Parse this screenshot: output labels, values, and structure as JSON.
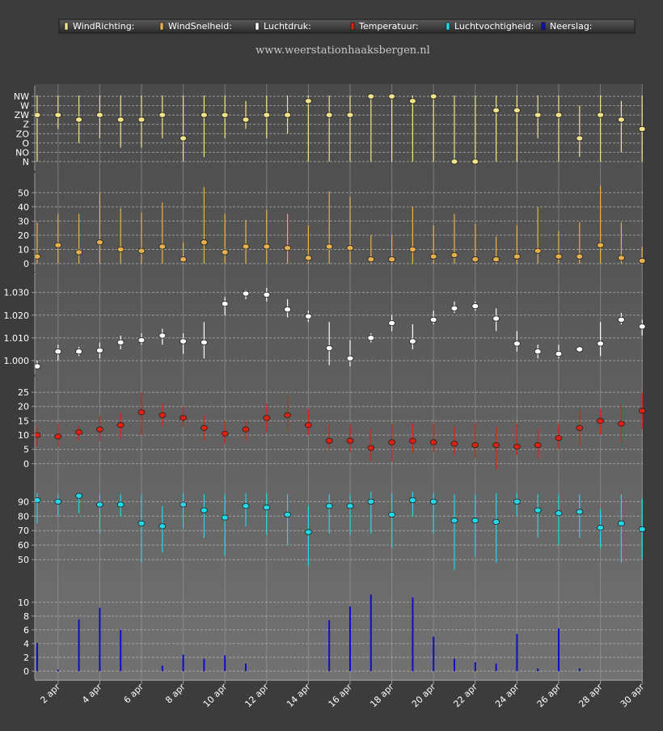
{
  "site": "www.weerstationhaaksbergen.nl",
  "legend": [
    {
      "label": "WindRichting:",
      "color": "#f2e28a"
    },
    {
      "label": "WindSnelheid:",
      "color": "#e8b04c"
    },
    {
      "label": "Luchtdruk:",
      "color": "#ffffff"
    },
    {
      "label": "Temperatuur:",
      "color": "#e02010"
    },
    {
      "label": "Luchtvochtigheid:",
      "color": "#20d8e8"
    },
    {
      "label": "Neerslag:",
      "color": "#1010c0"
    }
  ],
  "x_tick_labels": [
    "2 apr",
    "4 apr",
    "6 apr",
    "8 apr",
    "10 apr",
    "12 apr",
    "14 apr",
    "16 apr",
    "18 apr",
    "20 apr",
    "22 apr",
    "24 apr",
    "26 apr",
    "28 apr",
    "30 apr"
  ],
  "chart_data": [
    {
      "type": "scatter",
      "name": "WindRichting",
      "color": "#f2e28a",
      "y_categories": [
        "N",
        "NO",
        "O",
        "ZO",
        "Z",
        "ZW",
        "W",
        "NW"
      ],
      "ylim": [
        -0.1,
        7.1
      ],
      "x": [
        1,
        2,
        3,
        4,
        5,
        6,
        7,
        8,
        9,
        10,
        11,
        12,
        13,
        14,
        15,
        16,
        17,
        18,
        19,
        20,
        21,
        22,
        23,
        24,
        25,
        26,
        27,
        28,
        29,
        30
      ],
      "values": [
        5,
        5,
        4.5,
        5,
        4.5,
        4.5,
        5,
        2.5,
        5,
        5,
        4.5,
        5,
        5,
        6.5,
        5,
        5,
        7,
        7,
        6.5,
        7,
        0,
        0,
        5.5,
        5.5,
        5,
        5,
        2.5,
        5,
        4.5,
        3.5
      ],
      "lo": [
        0,
        3.5,
        2,
        2.5,
        1.5,
        1.5,
        2.5,
        0,
        0.5,
        2.5,
        3.5,
        2.5,
        3,
        0,
        0,
        0,
        0,
        0,
        0,
        0,
        0,
        0,
        0,
        0,
        2.5,
        0,
        0.5,
        0,
        1,
        0
      ],
      "hi": [
        8,
        8,
        8,
        8,
        8,
        8,
        7.5,
        8,
        8,
        8,
        6.5,
        8,
        8,
        8,
        7.5,
        8,
        8,
        8,
        8,
        8,
        8,
        8,
        8,
        8,
        7.5,
        8,
        6,
        8,
        6.5,
        8
      ]
    },
    {
      "type": "scatter",
      "name": "WindSnelheid",
      "color": "#e8b04c",
      "yticks": [
        0,
        10,
        20,
        30,
        40,
        50
      ],
      "ylim": [
        0,
        57
      ],
      "x": [
        1,
        2,
        3,
        4,
        5,
        6,
        7,
        8,
        9,
        10,
        11,
        12,
        13,
        14,
        15,
        16,
        17,
        18,
        19,
        20,
        21,
        22,
        23,
        24,
        25,
        26,
        27,
        28,
        29,
        30
      ],
      "values": [
        5,
        13,
        8,
        15,
        10,
        9,
        12,
        3,
        15,
        8,
        12,
        12,
        11,
        4,
        12,
        11,
        3,
        3,
        10,
        5,
        6,
        3,
        3,
        5,
        9,
        5,
        5,
        13,
        4,
        2
      ],
      "lo": [
        0,
        0,
        0,
        0,
        0,
        0,
        0,
        0,
        0,
        0,
        0,
        0,
        0,
        0,
        0,
        0,
        0,
        0,
        0,
        0,
        0,
        0,
        0,
        0,
        0,
        0,
        0,
        0,
        0,
        0
      ],
      "hi": [
        29,
        35,
        35,
        50,
        39,
        36,
        43,
        15,
        54,
        35,
        31,
        38,
        35,
        27,
        51,
        47,
        20,
        20,
        40,
        27,
        35,
        28,
        19,
        27,
        40,
        23,
        29,
        55,
        29,
        12
      ]
    },
    {
      "type": "scatter",
      "name": "Luchtdruk",
      "color": "#ffffff",
      "yticks": [
        1.0,
        1.01,
        1.02,
        1.03
      ],
      "ytick_labels": [
        "1.000",
        "1.010",
        "1.020",
        "1.030"
      ],
      "ylim": [
        0.9975,
        1.0345
      ],
      "x": [
        1,
        2,
        3,
        4,
        5,
        6,
        7,
        8,
        9,
        10,
        11,
        12,
        13,
        14,
        15,
        16,
        17,
        18,
        19,
        20,
        21,
        22,
        23,
        24,
        25,
        26,
        27,
        28,
        29,
        30
      ],
      "values": [
        0.9955,
        1.004,
        1.004,
        1.0045,
        1.008,
        1.009,
        1.011,
        1.0085,
        1.008,
        1.025,
        1.0295,
        1.029,
        1.0225,
        1.0195,
        1.0055,
        1.001,
        1.01,
        1.0165,
        1.0085,
        1.018,
        1.023,
        1.024,
        1.0185,
        1.0075,
        1.004,
        1.003,
        1.005,
        1.0075,
        1.018,
        1.015
      ],
      "lo": [
        0.993,
        1.0,
        1.002,
        1.001,
        1.005,
        1.007,
        1.007,
        1.003,
        1.001,
        1.02,
        1.027,
        1.026,
        1.019,
        1.017,
        0.998,
        0.996,
        1.008,
        1.013,
        1.005,
        1.016,
        1.021,
        1.022,
        1.013,
        1.004,
        1.001,
        1.001,
        1.004,
        1.002,
        1.016,
        1.011
      ],
      "hi": [
        1.0,
        1.007,
        1.006,
        1.008,
        1.011,
        1.012,
        1.014,
        1.012,
        1.017,
        1.028,
        1.031,
        1.032,
        1.027,
        1.022,
        1.017,
        1.009,
        1.012,
        1.02,
        1.016,
        1.022,
        1.026,
        1.026,
        1.023,
        1.013,
        1.007,
        1.007,
        1.006,
        1.017,
        1.021,
        1.018
      ]
    },
    {
      "type": "scatter",
      "name": "Temperatuur",
      "color": "#e02010",
      "yticks": [
        0,
        5,
        10,
        15,
        20,
        25
      ],
      "ylim": [
        -3,
        27
      ],
      "x": [
        1,
        2,
        3,
        4,
        5,
        6,
        7,
        8,
        9,
        10,
        11,
        12,
        13,
        14,
        15,
        16,
        17,
        18,
        19,
        20,
        21,
        22,
        23,
        24,
        25,
        26,
        27,
        28,
        29,
        30
      ],
      "values": [
        10,
        9.5,
        11,
        12,
        13.5,
        18,
        17,
        16,
        12.5,
        10.5,
        12,
        16,
        17,
        13.5,
        8,
        8,
        5.5,
        7.5,
        8,
        7.5,
        7,
        6.5,
        6.5,
        6,
        6.5,
        9,
        12.5,
        15,
        14,
        18.5
      ],
      "lo": [
        6,
        6,
        8,
        8,
        9,
        10,
        13,
        13,
        8,
        7,
        8,
        11,
        11,
        10,
        5,
        4,
        1,
        1,
        4,
        4,
        3,
        2,
        -2,
        3,
        2,
        5,
        6,
        10,
        7,
        12
      ],
      "hi": [
        13,
        14,
        13,
        17,
        18,
        25,
        21,
        20,
        17,
        15,
        15,
        21,
        24,
        19,
        14,
        14,
        12,
        14,
        14,
        14,
        13,
        14,
        13,
        14,
        12,
        14,
        19,
        19,
        21,
        25
      ]
    },
    {
      "type": "scatter",
      "name": "Luchtvochtigheid",
      "color": "#20d8e8",
      "yticks": [
        50,
        60,
        70,
        80,
        90
      ],
      "ylim": [
        40,
        98
      ],
      "x": [
        1,
        2,
        3,
        4,
        5,
        6,
        7,
        8,
        9,
        10,
        11,
        12,
        13,
        14,
        15,
        16,
        17,
        18,
        19,
        20,
        21,
        22,
        23,
        24,
        25,
        26,
        27,
        28,
        29,
        30
      ],
      "values": [
        91,
        90,
        94,
        88,
        88,
        75,
        73,
        88,
        84,
        79,
        87,
        86,
        81,
        69,
        87,
        87,
        90,
        81,
        91,
        90,
        77,
        77,
        76,
        90,
        84,
        82,
        83,
        72,
        75,
        71
      ],
      "lo": [
        75,
        80,
        82,
        68,
        80,
        48,
        55,
        72,
        65,
        53,
        73,
        67,
        60,
        46,
        68,
        67,
        68,
        58,
        80,
        68,
        43,
        52,
        48,
        80,
        65,
        60,
        65,
        58,
        48,
        50
      ],
      "hi": [
        96,
        95,
        96,
        95,
        95,
        95,
        87,
        96,
        95,
        95,
        96,
        96,
        95,
        87,
        95,
        95,
        97,
        96,
        97,
        96,
        95,
        95,
        96,
        96,
        95,
        95,
        95,
        85,
        95,
        92
      ]
    },
    {
      "type": "bar",
      "name": "Neerslag",
      "color": "#1010c0",
      "yticks": [
        0,
        2,
        4,
        6,
        8,
        10
      ],
      "ylim": [
        0,
        11.5
      ],
      "x": [
        1,
        2,
        3,
        4,
        5,
        6,
        7,
        8,
        9,
        10,
        11,
        12,
        13,
        14,
        15,
        16,
        17,
        18,
        19,
        20,
        21,
        22,
        23,
        24,
        25,
        26,
        27,
        28,
        29,
        30
      ],
      "values": [
        4.1,
        0.2,
        7.5,
        9.2,
        6.0,
        0,
        0.8,
        2.4,
        1.8,
        2.3,
        1.1,
        0,
        0,
        0,
        7.4,
        9.4,
        11.1,
        0,
        10.7,
        5.0,
        1.8,
        1.3,
        1.1,
        5.4,
        0.4,
        6.2,
        0.4,
        0,
        0,
        0
      ]
    }
  ]
}
